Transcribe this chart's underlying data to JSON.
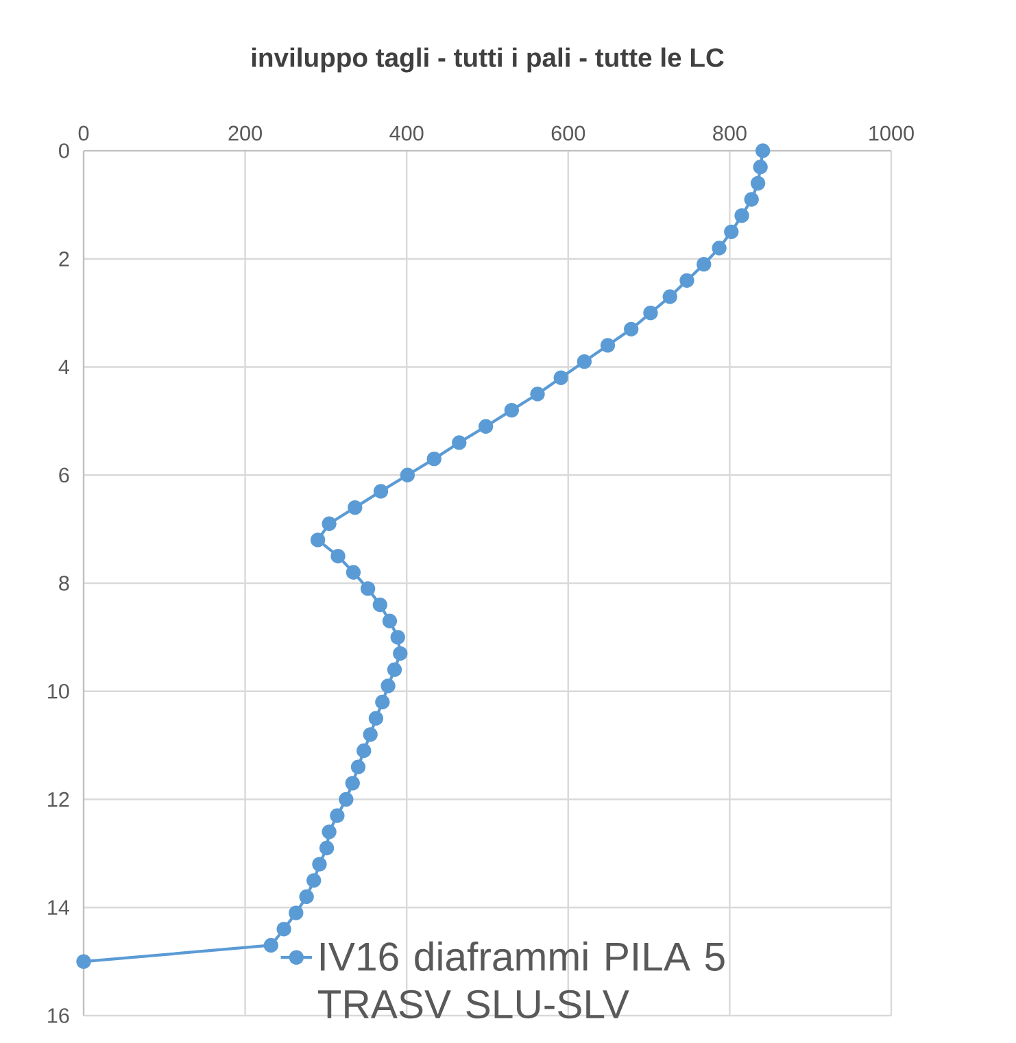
{
  "chart_data": {
    "type": "line",
    "title": "inviluppo tagli - tutti i pali - tutte le LC",
    "xlim": [
      0,
      1000
    ],
    "xticks": [
      0,
      200,
      400,
      600,
      800,
      1000
    ],
    "ylim": [
      16,
      0
    ],
    "yticks": [
      0,
      2,
      4,
      6,
      8,
      10,
      12,
      14,
      16
    ],
    "grid": true,
    "legend": "bottom right",
    "marker": "circle",
    "line_style": "solid",
    "series": [
      {
        "name": "IV16 diaframmi PILA 5 TRASV SLU-SLV",
        "color": "#5b9bd5",
        "x": [
          841,
          838,
          835,
          827,
          815,
          802,
          787,
          768,
          747,
          726,
          702,
          678,
          649,
          620,
          591,
          562,
          530,
          498,
          465,
          434,
          401,
          368,
          336,
          304,
          290,
          315,
          334,
          352,
          367,
          379,
          389,
          392,
          385,
          377,
          370,
          362,
          355,
          347,
          340,
          333,
          325,
          314,
          304,
          301,
          292,
          285,
          276,
          263,
          248,
          232,
          0
        ],
        "values": [
          0,
          0.3,
          0.6,
          0.9,
          1.2,
          1.5,
          1.8,
          2.1,
          2.4,
          2.7,
          3.0,
          3.3,
          3.6,
          3.9,
          4.2,
          4.5,
          4.8,
          5.1,
          5.4,
          5.7,
          6.0,
          6.3,
          6.6,
          6.9,
          7.2,
          7.5,
          7.8,
          8.1,
          8.4,
          8.7,
          9.0,
          9.3,
          9.6,
          9.9,
          10.2,
          10.5,
          10.8,
          11.1,
          11.4,
          11.7,
          12.0,
          12.3,
          12.6,
          12.9,
          13.2,
          13.5,
          13.8,
          14.1,
          14.4,
          14.7,
          15.0
        ]
      }
    ]
  }
}
